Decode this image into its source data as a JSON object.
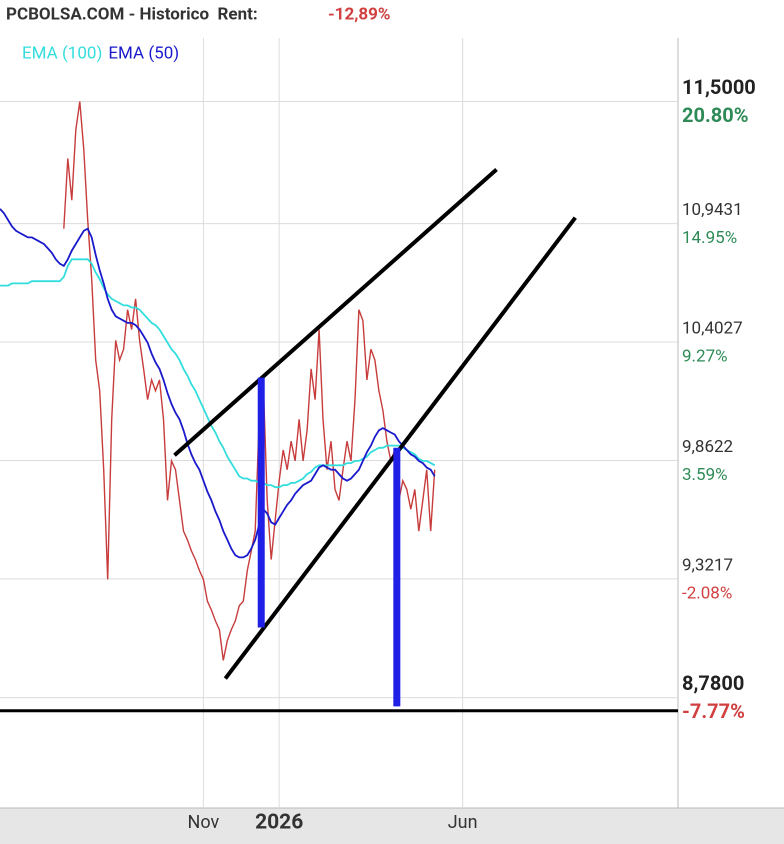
{
  "chart_data": {
    "type": "line",
    "title": "PCBOLSA.COM - Historico  Rent:",
    "rent": "-12,89%",
    "xlim": [
      0,
      170
    ],
    "xticks": [
      {
        "value": 51,
        "label": "Nov"
      },
      {
        "value": 70,
        "label": "2026"
      },
      {
        "value": 116,
        "label": "Jun"
      }
    ],
    "ylim": [
      8.29,
      11.79
    ],
    "yticks": [
      {
        "value": 11.5,
        "label": "11,5000"
      },
      {
        "value": 10.9431,
        "label": "10,9431"
      },
      {
        "value": 10.4027,
        "label": "10,4027"
      },
      {
        "value": 9.8622,
        "label": "9,8622"
      },
      {
        "value": 9.3217,
        "label": "9,3217"
      },
      {
        "value": 8.78,
        "label": "8,7800"
      }
    ],
    "y2lim": [
      -12.92,
      23.85
    ],
    "y2ticks": [
      {
        "value": 20.8,
        "label": "20.80%"
      },
      {
        "value": 14.95,
        "label": "14.95%"
      },
      {
        "value": 9.27,
        "label": "9.27%"
      },
      {
        "value": 3.59,
        "label": "3.59%"
      },
      {
        "value": -2.08,
        "label": "-2.08%"
      },
      {
        "value": -7.77,
        "label": "-7.77%"
      }
    ],
    "grid": true,
    "legend": "top-left",
    "series": [
      {
        "color": "#c83c3c",
        "values": [
          null,
          null,
          null,
          null,
          null,
          null,
          null,
          null,
          null,
          null,
          null,
          null,
          null,
          null,
          null,
          null,
          10.92,
          11.24,
          11.05,
          11.37,
          11.5,
          11.28,
          10.96,
          10.69,
          10.32,
          10.18,
          9.82,
          9.32,
          10.05,
          10.41,
          10.32,
          10.37,
          10.55,
          10.46,
          10.6,
          10.41,
          10.28,
          10.14,
          10.23,
          10.18,
          10.23,
          10.05,
          9.68,
          9.86,
          9.82,
          9.68,
          9.54,
          9.5,
          9.45,
          9.41,
          9.36,
          9.32,
          9.22,
          9.18,
          9.13,
          9.09,
          8.95,
          9.04,
          9.09,
          9.13,
          9.2,
          9.22,
          9.36,
          9.45,
          9.54,
          10.05,
          10.23,
          9.68,
          9.41,
          9.59,
          9.77,
          9.91,
          9.82,
          9.95,
          9.86,
          10.05,
          9.86,
          10.0,
          10.28,
          10.14,
          10.46,
          10.05,
          9.82,
          9.95,
          9.73,
          9.68,
          9.82,
          9.95,
          9.86,
          10.14,
          10.55,
          10.5,
          10.23,
          10.37,
          10.32,
          10.18,
          10.09,
          9.95,
          9.86,
          9.91,
          9.68,
          9.77,
          9.73,
          9.64,
          9.73,
          9.54,
          9.68,
          9.82,
          9.54,
          9.82
        ]
      },
      {
        "name": "EMA (100)",
        "color": "#33dddd",
        "values": [
          10.66,
          10.66,
          10.66,
          10.67,
          10.67,
          10.67,
          10.67,
          10.67,
          10.68,
          10.68,
          10.68,
          10.68,
          10.68,
          10.68,
          10.68,
          10.68,
          10.7,
          10.75,
          10.78,
          10.78,
          10.78,
          10.78,
          10.78,
          10.76,
          10.72,
          10.69,
          10.65,
          10.62,
          10.6,
          10.59,
          10.58,
          10.57,
          10.57,
          10.56,
          10.56,
          10.55,
          10.53,
          10.51,
          10.49,
          10.48,
          10.46,
          10.43,
          10.4,
          10.37,
          10.35,
          10.32,
          10.28,
          10.25,
          10.21,
          10.18,
          10.14,
          10.1,
          10.06,
          10.02,
          9.99,
          9.95,
          9.92,
          9.88,
          9.85,
          9.82,
          9.79,
          9.78,
          9.78,
          9.77,
          9.77,
          9.76,
          9.76,
          9.75,
          9.75,
          9.74,
          9.74,
          9.75,
          9.75,
          9.76,
          9.76,
          9.77,
          9.78,
          9.8,
          9.81,
          9.83,
          9.84,
          9.84,
          9.84,
          9.84,
          9.84,
          9.84,
          9.84,
          9.85,
          9.85,
          9.86,
          9.86,
          9.87,
          9.88,
          9.9,
          9.91,
          9.92,
          9.92,
          9.93,
          9.93,
          9.93,
          9.93,
          9.92,
          9.91,
          9.9,
          9.89,
          9.87,
          9.86,
          9.86,
          9.85,
          9.84
        ]
      },
      {
        "name": "EMA (50)",
        "color": "#1a1acc",
        "values": [
          11.01,
          10.99,
          10.96,
          10.93,
          10.91,
          10.9,
          10.89,
          10.88,
          10.88,
          10.87,
          10.86,
          10.85,
          10.83,
          10.81,
          10.78,
          10.76,
          10.75,
          10.78,
          10.82,
          10.85,
          10.88,
          10.91,
          10.92,
          10.88,
          10.8,
          10.73,
          10.67,
          10.6,
          10.55,
          10.52,
          10.51,
          10.5,
          10.49,
          10.49,
          10.48,
          10.46,
          10.43,
          10.4,
          10.35,
          10.31,
          10.28,
          10.23,
          10.17,
          10.12,
          10.08,
          10.05,
          10.0,
          9.94,
          9.89,
          9.85,
          9.82,
          9.77,
          9.72,
          9.68,
          9.63,
          9.59,
          9.54,
          9.5,
          9.46,
          9.43,
          9.42,
          9.42,
          9.43,
          9.46,
          9.5,
          9.57,
          9.64,
          9.62,
          9.58,
          9.57,
          9.6,
          9.63,
          9.66,
          9.68,
          9.71,
          9.73,
          9.75,
          9.76,
          9.77,
          9.8,
          9.83,
          9.84,
          9.83,
          9.82,
          9.82,
          9.8,
          9.78,
          9.77,
          9.78,
          9.8,
          9.82,
          9.86,
          9.9,
          9.93,
          9.97,
          10.0,
          10.01,
          10.0,
          9.99,
          9.98,
          9.95,
          9.93,
          9.91,
          9.89,
          9.88,
          9.86,
          9.85,
          9.83,
          9.82,
          9.79
        ]
      }
    ],
    "drawings": [
      {
        "color": "#000000",
        "width": 4,
        "x": [
          43.75,
          124.5
        ],
        "y": [
          9.886,
          11.19
        ]
      },
      {
        "color": "#000000",
        "width": 4,
        "x": [
          56.5,
          144.25
        ],
        "y": [
          8.867,
          10.97
        ]
      },
      {
        "color": "#000000",
        "width": 3,
        "x": [
          0,
          170
        ],
        "y": [
          8.72,
          8.72
        ]
      },
      {
        "color": "#1f1fe6",
        "width": 7,
        "x": [
          65.5,
          65.5
        ],
        "y": [
          10.24,
          9.1
        ]
      },
      {
        "color": "#1f1fe6",
        "width": 7,
        "x": [
          99.5,
          99.5
        ],
        "y": [
          9.92,
          8.74
        ]
      }
    ]
  }
}
